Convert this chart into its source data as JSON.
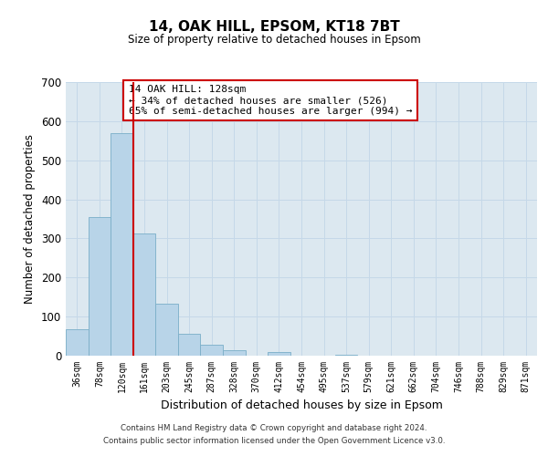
{
  "title": "14, OAK HILL, EPSOM, KT18 7BT",
  "subtitle": "Size of property relative to detached houses in Epsom",
  "xlabel": "Distribution of detached houses by size in Epsom",
  "ylabel": "Number of detached properties",
  "bar_labels": [
    "36sqm",
    "78sqm",
    "120sqm",
    "161sqm",
    "203sqm",
    "245sqm",
    "287sqm",
    "328sqm",
    "370sqm",
    "412sqm",
    "454sqm",
    "495sqm",
    "537sqm",
    "579sqm",
    "621sqm",
    "662sqm",
    "704sqm",
    "746sqm",
    "788sqm",
    "829sqm",
    "871sqm"
  ],
  "bar_values": [
    68,
    355,
    570,
    313,
    132,
    57,
    27,
    14,
    0,
    10,
    0,
    0,
    3,
    0,
    0,
    0,
    0,
    0,
    0,
    0,
    0
  ],
  "bar_color": "#b8d4e8",
  "bar_edge_color": "#7aaec8",
  "vline_index": 2,
  "vline_color": "#cc0000",
  "annotation_text": "14 OAK HILL: 128sqm\n← 34% of detached houses are smaller (526)\n65% of semi-detached houses are larger (994) →",
  "annotation_box_color": "#ffffff",
  "annotation_box_edge_color": "#cc0000",
  "ylim": [
    0,
    700
  ],
  "yticks": [
    0,
    100,
    200,
    300,
    400,
    500,
    600,
    700
  ],
  "background_color": "#ffffff",
  "plot_bg_color": "#dce8f0",
  "grid_color": "#c5d8e8",
  "footer_line1": "Contains HM Land Registry data © Crown copyright and database right 2024.",
  "footer_line2": "Contains public sector information licensed under the Open Government Licence v3.0."
}
